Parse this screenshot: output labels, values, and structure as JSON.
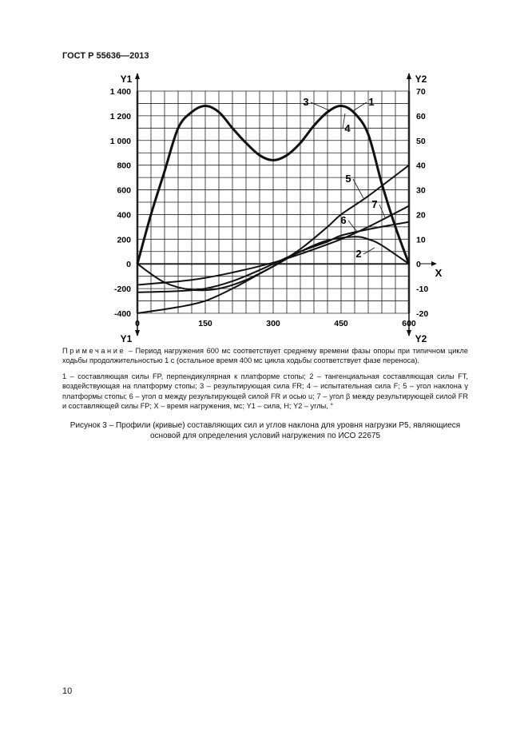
{
  "header": "ГОСТ Р 55636—2013",
  "page_number": "10",
  "note": {
    "label": "Примечание",
    "text": " – Период нагружения 600 мс соответствует среднему времени фазы опоры при типичном цикле ходьбы продолжительностью 1 с (остальное время  400 мс  цикла ходьбы соответствует фазе переноса)."
  },
  "legend_text": "1 – составляющая силы FP, перпендикулярная к платформе стопы; 2 –  тангенциальная составляющая силы FT, воздействующая на платформу стопы; 3 –              результирующая сила FR; 4 – испытательная сила F; 5 – угол наклона γ платформы стопы; 6 –  угол α между результирующей силой FR и осью u; 7 – угол β между результирующей силой FR и составляющей  силы FP;  X – время нагружения, мс; Y1 – сила, Н; Y2 –       углы, °",
  "caption": "Рисунок 3 – Профили (кривые) составляющих сил и углов наклона для уровня нагрузки P5, являющиеся основой для определения условий нагружения по ИСО 22675",
  "chart_data": {
    "type": "line",
    "xlabel": "X",
    "ylabel": "Y1",
    "y2label": "Y2",
    "xlim": [
      0,
      600
    ],
    "ylim": [
      -400,
      1400
    ],
    "y2lim": [
      -20,
      70
    ],
    "x_ticks": [
      "0",
      "150",
      "300",
      "450",
      "600"
    ],
    "y_ticks": [
      "-400",
      "-200",
      "0",
      "200",
      "400",
      "600",
      "800",
      "1 000",
      "1 200",
      "1 400"
    ],
    "y2_ticks": [
      "-20",
      "-10",
      "0",
      "10",
      "20",
      "30",
      "40",
      "50",
      "60",
      "70"
    ],
    "grid": true,
    "series": [
      {
        "name": "1",
        "x": [
          0,
          30,
          60,
          90,
          120,
          150,
          180,
          210,
          240,
          270,
          300,
          330,
          360,
          390,
          420,
          450,
          480,
          510,
          540,
          570,
          600
        ],
        "y": [
          0,
          400,
          750,
          1100,
          1230,
          1280,
          1230,
          1100,
          980,
          880,
          840,
          880,
          980,
          1120,
          1230,
          1280,
          1220,
          1050,
          650,
          300,
          0
        ]
      },
      {
        "name": "2",
        "x": [
          0,
          60,
          120,
          180,
          240,
          300,
          360,
          420,
          480,
          510,
          540,
          600
        ],
        "y": [
          0,
          -150,
          -210,
          -200,
          -130,
          -20,
          100,
          190,
          220,
          200,
          150,
          0
        ]
      },
      {
        "name": "5",
        "x": [
          0,
          90,
          150,
          210,
          270,
          300,
          360,
          420,
          450,
          510,
          600
        ],
        "y": [
          -400,
          -350,
          -300,
          -200,
          -80,
          -20,
          120,
          300,
          400,
          550,
          800
        ]
      },
      {
        "name": "6",
        "x": [
          0,
          90,
          150,
          210,
          270,
          300,
          360,
          420,
          450,
          510,
          600
        ],
        "y": [
          -230,
          -220,
          -200,
          -140,
          -50,
          0,
          100,
          180,
          230,
          280,
          340
        ]
      },
      {
        "name": "7",
        "x": [
          0,
          120,
          210,
          300,
          360,
          450,
          510,
          600
        ],
        "y": [
          -170,
          -130,
          -70,
          10,
          80,
          200,
          300,
          470
        ]
      }
    ],
    "annotations": [
      "1",
      "2",
      "3",
      "4",
      "5",
      "6",
      "7"
    ]
  }
}
